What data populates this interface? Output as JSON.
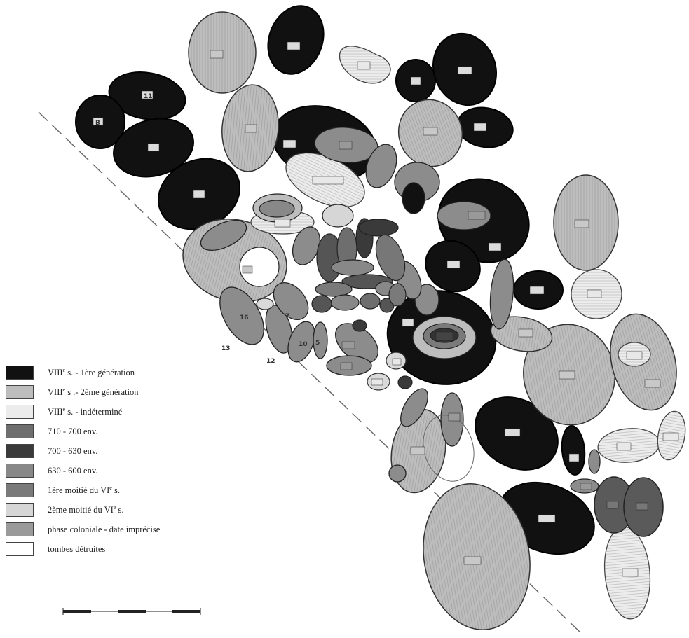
{
  "legend": [
    {
      "label_main": "VIII",
      "label_sup": "e",
      "label_rest": " s. - 1ère génération",
      "color": "#111111"
    },
    {
      "label_main": "VIII",
      "label_sup": "e",
      "label_rest": " s .- 2ème génération",
      "color": "#bdbdbd"
    },
    {
      "label_main": "VIII",
      "label_sup": "e",
      "label_rest": " s. - indéterminé",
      "color": "#ececec"
    },
    {
      "label_main": "710 - 700 env.",
      "label_sup": "",
      "label_rest": "",
      "color": "#6e6e6e"
    },
    {
      "label_main": "700 - 630 env.",
      "label_sup": "",
      "label_rest": "",
      "color": "#3a3a3a"
    },
    {
      "label_main": "630 - 600 env.",
      "label_sup": "",
      "label_rest": "",
      "color": "#888888"
    },
    {
      "label_main": "1ère moitié du VI",
      "label_sup": "e",
      "label_rest": " s.",
      "color": "#7a7a7a"
    },
    {
      "label_main": "2ème moitié du VI",
      "label_sup": "e",
      "label_rest": " s.",
      "color": "#d6d6d6"
    },
    {
      "label_main": "phase coloniale - date imprécise",
      "label_sup": "",
      "label_rest": "",
      "color": "#9a9a9a"
    },
    {
      "label_main": "tombes détruites",
      "label_sup": "",
      "label_rest": "",
      "color": "#ffffff"
    }
  ],
  "tomb_labels": [
    "13",
    "12",
    "B",
    "11",
    "7",
    "10",
    "5",
    "16"
  ],
  "colors": {
    "first_gen": "#111111",
    "second_gen": "#bdbdbd",
    "indeterminate": "#ececec",
    "c710": "#6e6e6e",
    "c700": "#3a3a3a",
    "c630": "#888888",
    "vi_first": "#7a7a7a",
    "vi_second": "#d6d6d6",
    "colonial": "#9a9a9a",
    "destroyed": "#ffffff"
  }
}
